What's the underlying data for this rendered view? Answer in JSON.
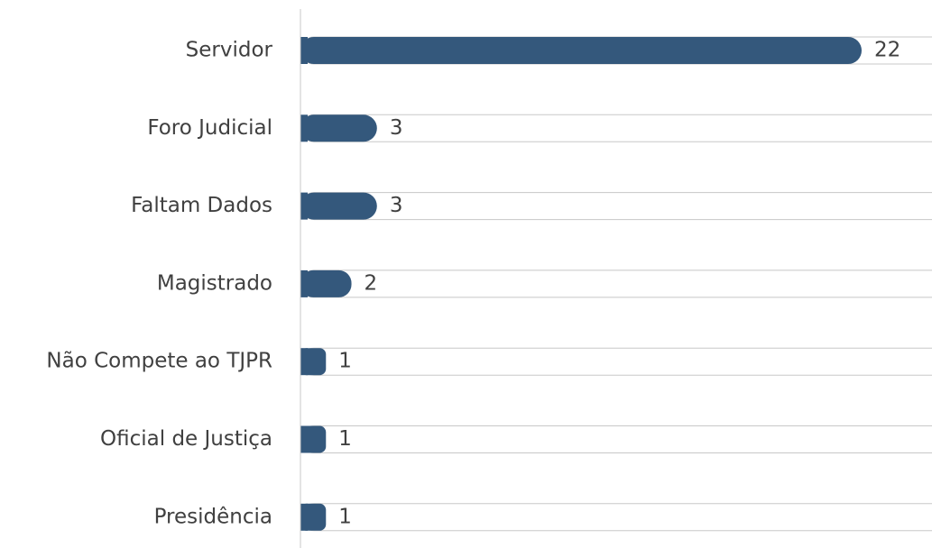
{
  "chart_data": {
    "type": "bar",
    "orientation": "horizontal",
    "categories": [
      "Servidor",
      "Foro Judicial",
      "Faltam Dados",
      "Magistrado",
      "Não Compete ao TJPR",
      "Oficial de Justiça",
      "Presidência"
    ],
    "values": [
      22,
      3,
      3,
      2,
      1,
      1,
      1
    ],
    "color": "#34587c"
  }
}
